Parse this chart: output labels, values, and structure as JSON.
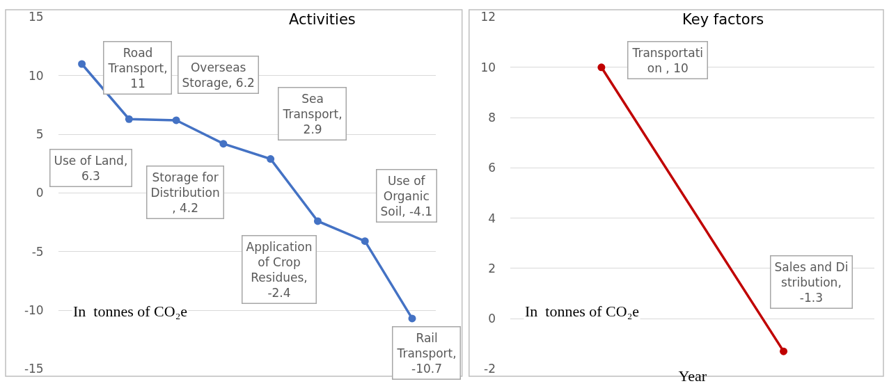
{
  "chart_data": [
    {
      "type": "line",
      "title": "Activities",
      "categories": [
        null,
        null,
        null,
        null,
        null,
        null,
        null,
        null
      ],
      "series": [
        {
          "color": "#4472c4",
          "values": [
            11,
            6.3,
            6.2,
            4.2,
            2.9,
            -2.4,
            -4.1,
            -10.7
          ]
        }
      ],
      "value_labels": [
        "Road Transport, 11",
        "Use of Land, 6.3",
        "Overseas Storage, 6.2",
        "Storage for Distribution , 4.2",
        "Sea Transport, 2.9",
        "Application of Crop Residues, -2.4",
        "Use of Organic Soil, -4.1",
        "Rail Transport, -10.7"
      ],
      "ylim": [
        -15,
        15
      ],
      "yticks": [
        -15,
        -10,
        -5,
        0,
        5,
        10,
        15
      ],
      "grid": "y",
      "marker": "circle",
      "line_style": "solid",
      "annotations": [
        "In  tonnes of CO₂e"
      ]
    },
    {
      "type": "line",
      "title": "Key factors",
      "xlabel": "Year",
      "categories": [
        null,
        null
      ],
      "series": [
        {
          "color": "#c00000",
          "values": [
            10,
            -1.3
          ]
        }
      ],
      "value_labels": [
        "Transportation , 10",
        "Sales and Distribution, -1.3"
      ],
      "ylim": [
        -2,
        12
      ],
      "yticks": [
        -2,
        0,
        2,
        4,
        6,
        8,
        10,
        12
      ],
      "grid": "y",
      "marker": "circle",
      "line_style": "solid",
      "annotations": [
        "In  tonnes of CO₂e"
      ]
    }
  ]
}
